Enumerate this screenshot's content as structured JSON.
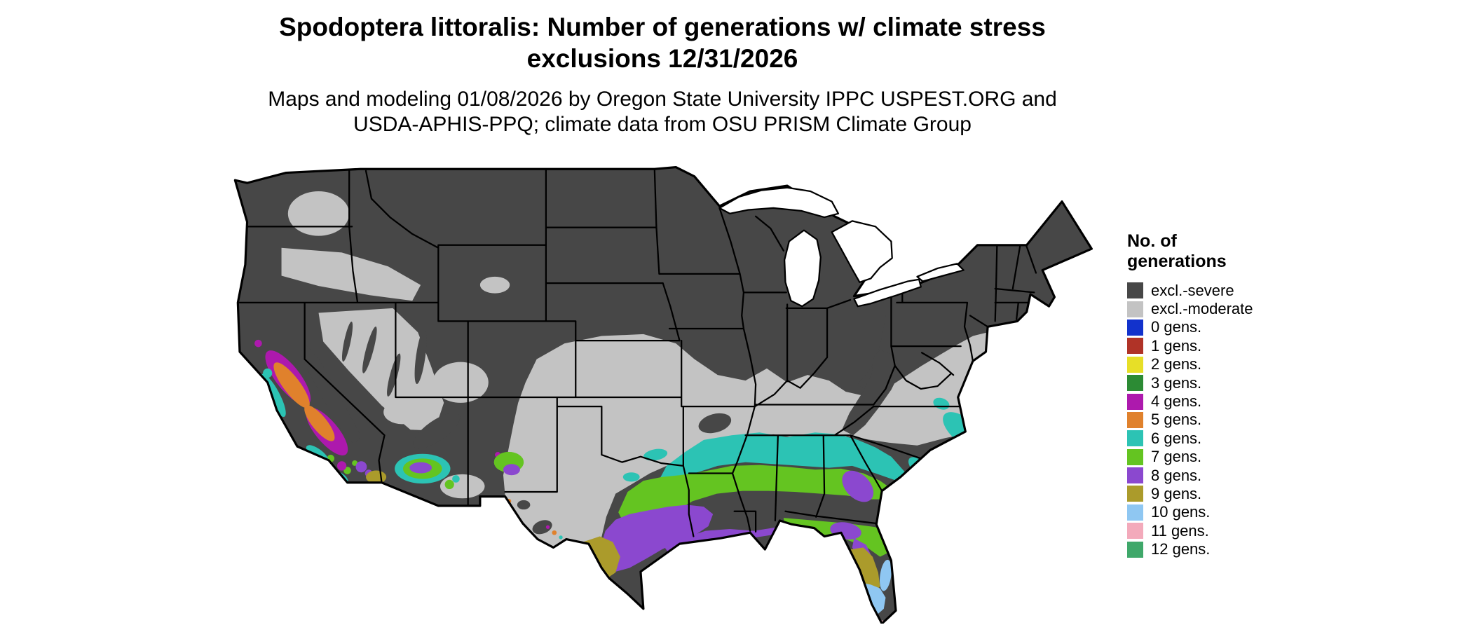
{
  "header": {
    "title_line1": "Spodoptera littoralis: Number of generations w/ climate stress",
    "title_line2": "exclusions 12/31/2026",
    "subtitle_line1": "Maps and modeling 01/08/2026 by Oregon State University IPPC USPEST.ORG and",
    "subtitle_line2": "USDA-APHIS-PPQ; climate data from OSU PRISM Climate Group"
  },
  "legend": {
    "title_line1": "No. of",
    "title_line2": "generations",
    "items": [
      {
        "key": "severe",
        "label": "excl.-severe",
        "color": "#474747"
      },
      {
        "key": "moderate",
        "label": "excl.-moderate",
        "color": "#c3c3c3"
      },
      {
        "key": "g0",
        "label": "0 gens.",
        "color": "#1232cc"
      },
      {
        "key": "g1",
        "label": "1 gens.",
        "color": "#b03327"
      },
      {
        "key": "g2",
        "label": "2 gens.",
        "color": "#e7df27"
      },
      {
        "key": "g3",
        "label": "3 gens.",
        "color": "#2c8b34"
      },
      {
        "key": "g4",
        "label": "4 gens.",
        "color": "#ad19ad"
      },
      {
        "key": "g5",
        "label": "5 gens.",
        "color": "#e0812c"
      },
      {
        "key": "g6",
        "label": "6 gens.",
        "color": "#2cc3b4"
      },
      {
        "key": "g7",
        "label": "7 gens.",
        "color": "#64c421"
      },
      {
        "key": "g8",
        "label": "8 gens.",
        "color": "#8b48cf"
      },
      {
        "key": "g9",
        "label": "9 gens.",
        "color": "#ab9b2b"
      },
      {
        "key": "g10",
        "label": "10 gens.",
        "color": "#8fc7f2"
      },
      {
        "key": "g11",
        "label": "11 gens.",
        "color": "#f3aabb"
      },
      {
        "key": "g12",
        "label": "12 gens.",
        "color": "#3fa86a"
      }
    ]
  },
  "map": {
    "description": "Continental USA choropleth of modeled generation counts with climate stress exclusions",
    "background": "#ffffff",
    "border_color": "#000000"
  }
}
